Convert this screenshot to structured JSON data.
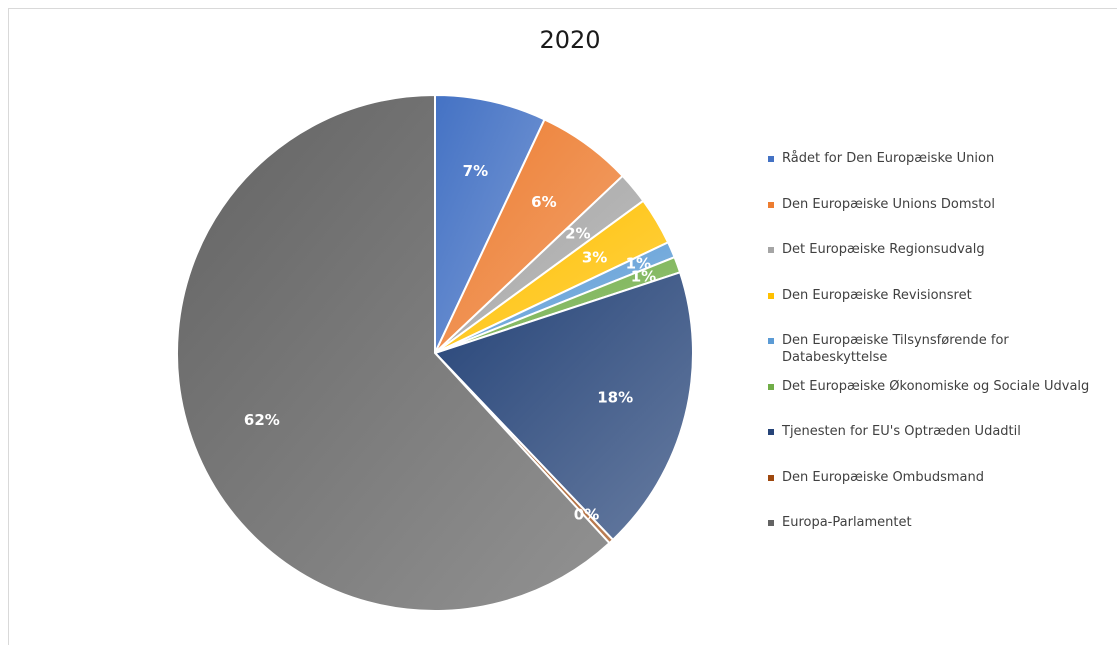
{
  "chart_data": {
    "type": "pie",
    "title": "2020",
    "legend_position": "right",
    "slices": [
      {
        "label": "Rådet for Den Europæiske Union",
        "value": 7,
        "data_label": "7%",
        "color": "#4472c4"
      },
      {
        "label": "Den Europæiske Unions Domstol",
        "value": 6,
        "data_label": "6%",
        "color": "#ed7d31"
      },
      {
        "label": "Det Europæiske Regionsudvalg",
        "value": 2,
        "data_label": "2%",
        "color": "#a5a5a5"
      },
      {
        "label": "Den Europæiske Revisionsret",
        "value": 3,
        "data_label": "3%",
        "color": "#ffc000"
      },
      {
        "label": "Den Europæiske Tilsynsførende for Databeskyttelse",
        "value": 1,
        "data_label": "1%",
        "color": "#5b9bd5"
      },
      {
        "label": "Det Europæiske Økonomiske og Sociale Udvalg",
        "value": 1,
        "data_label": "1%",
        "color": "#70ad47"
      },
      {
        "label": "Tjenesten for EU's Optræden Udadtil",
        "value": 18,
        "data_label": "18%",
        "color": "#264478"
      },
      {
        "label": "Den Europæiske Ombudsmand",
        "value": 0.3,
        "data_label": "0%",
        "color": "#9e480e"
      },
      {
        "label": "Europa-Parlamentet",
        "value": 62,
        "data_label": "62%",
        "color": "#636363"
      }
    ]
  }
}
